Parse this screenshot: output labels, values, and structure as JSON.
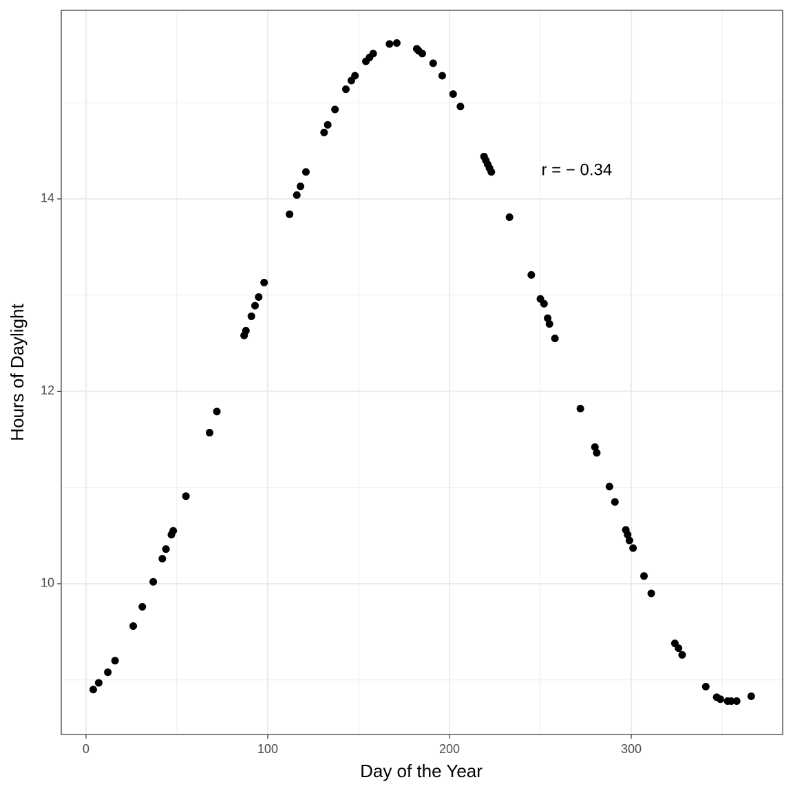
{
  "chart_data": {
    "type": "scatter",
    "x_label": "Day of the Year",
    "y_label": "Hours of Daylight",
    "x": [
      4,
      7,
      12,
      16,
      26,
      31,
      37,
      42,
      44,
      47,
      48,
      55,
      68,
      72,
      87,
      88,
      91,
      93,
      95,
      98,
      112,
      116,
      118,
      121,
      131,
      133,
      137,
      143,
      146,
      148,
      154,
      156,
      158,
      167,
      171,
      182,
      183,
      185,
      191,
      196,
      202,
      206,
      219,
      220,
      221,
      222,
      223,
      233,
      245,
      250,
      252,
      254,
      255,
      258,
      272,
      280,
      281,
      288,
      291,
      297,
      298,
      299,
      301,
      307,
      311,
      324,
      326,
      328,
      341,
      347,
      349,
      353,
      355,
      358,
      366
    ],
    "y": [
      8.9,
      8.97,
      9.08,
      9.2,
      9.56,
      9.76,
      10.02,
      10.26,
      10.36,
      10.51,
      10.55,
      10.91,
      11.57,
      11.79,
      12.58,
      12.63,
      12.78,
      12.89,
      12.98,
      13.13,
      13.84,
      14.04,
      14.13,
      14.28,
      14.69,
      14.77,
      14.93,
      15.14,
      15.23,
      15.28,
      15.43,
      15.47,
      15.51,
      15.61,
      15.62,
      15.56,
      15.54,
      15.51,
      15.41,
      15.28,
      15.09,
      14.96,
      14.44,
      14.4,
      14.36,
      14.32,
      14.28,
      13.81,
      13.21,
      12.96,
      12.91,
      12.76,
      12.7,
      12.55,
      11.82,
      11.42,
      11.36,
      11.01,
      10.85,
      10.56,
      10.51,
      10.45,
      10.37,
      10.08,
      9.9,
      9.38,
      9.33,
      9.26,
      8.93,
      8.82,
      8.8,
      8.78,
      8.78,
      8.78,
      8.83
    ],
    "color": "#000000",
    "xlim": [
      -13.6,
      383.3
    ],
    "ylim": [
      8.433,
      15.96
    ],
    "xticks": [
      0,
      100,
      200,
      300
    ],
    "yticks": [
      10,
      12,
      14
    ],
    "x_minor": [
      50,
      150,
      250,
      350
    ],
    "y_minor": [
      9,
      11,
      13,
      15
    ],
    "grid": true,
    "annotation": {
      "text": "r = − 0.34",
      "x": 270,
      "y": 14.29
    }
  }
}
